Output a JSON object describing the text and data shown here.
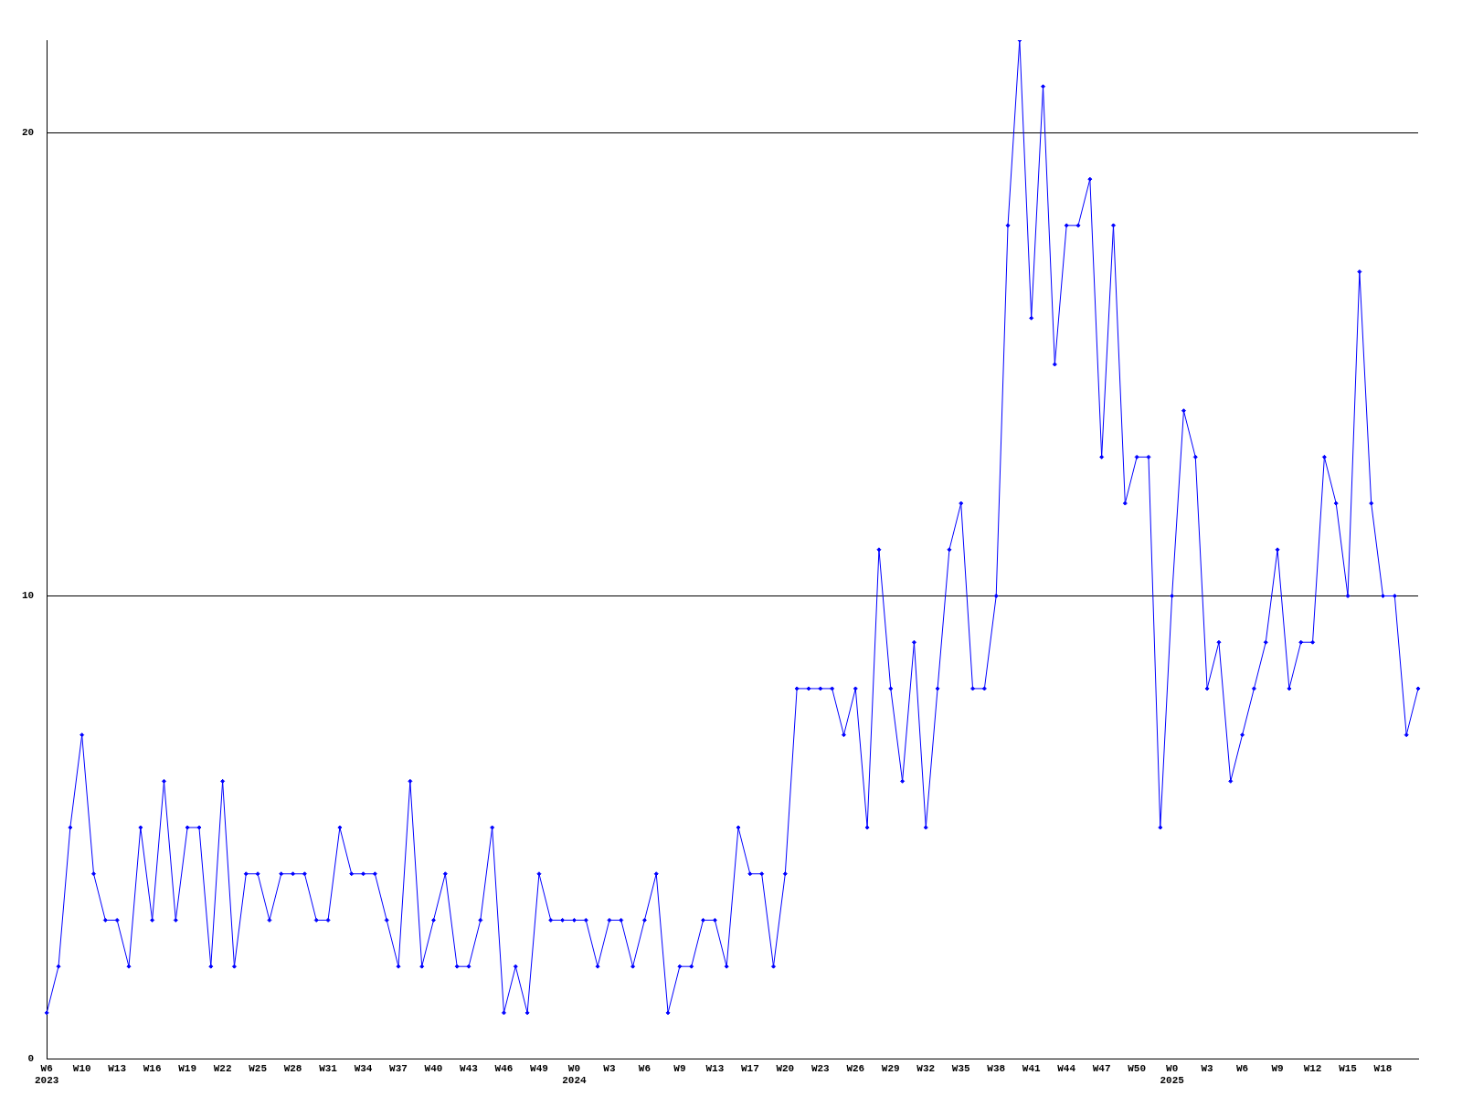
{
  "chart_data": {
    "type": "line",
    "categories": [
      "W6\n2023",
      null,
      null,
      "W10",
      null,
      null,
      "W13",
      null,
      null,
      "W16",
      null,
      null,
      "W19",
      null,
      null,
      "W22",
      null,
      null,
      "W25",
      null,
      null,
      "W28",
      null,
      null,
      "W31",
      null,
      null,
      "W34",
      null,
      null,
      "W37",
      null,
      null,
      "W40",
      null,
      null,
      "W43",
      null,
      null,
      "W46",
      null,
      null,
      "W49",
      null,
      null,
      "W0\n2024",
      null,
      null,
      "W3",
      null,
      null,
      "W6",
      null,
      null,
      "W9",
      null,
      null,
      "W13",
      null,
      null,
      "W17",
      null,
      null,
      "W20",
      null,
      null,
      "W23",
      null,
      null,
      "W26",
      null,
      null,
      "W29",
      null,
      null,
      "W32",
      null,
      null,
      "W35",
      null,
      null,
      "W38",
      null,
      null,
      "W41",
      null,
      null,
      "W44",
      null,
      null,
      "W47",
      null,
      null,
      "W50",
      null,
      null,
      "W0\n2025",
      null,
      null,
      "W3",
      null,
      null,
      "W6",
      null,
      null,
      "W9",
      null,
      null,
      "W12",
      null,
      null,
      "W15",
      null,
      null,
      "W18",
      null,
      null,
      null
    ],
    "series": [
      {
        "color": "#0000ff",
        "values": [
          1,
          2,
          5,
          7,
          4,
          3,
          3,
          2,
          5,
          3,
          6,
          3,
          5,
          5,
          2,
          6,
          2,
          4,
          4,
          3,
          4,
          4,
          4,
          3,
          3,
          5,
          4,
          4,
          4,
          3,
          2,
          6,
          2,
          3,
          4,
          2,
          2,
          3,
          5,
          1,
          2,
          1,
          4,
          3,
          3,
          3,
          3,
          2,
          3,
          3,
          2,
          3,
          4,
          1,
          2,
          2,
          3,
          3,
          2,
          5,
          4,
          4,
          2,
          4,
          8,
          8,
          8,
          8,
          7,
          8,
          5,
          11,
          8,
          6,
          9,
          5,
          8,
          11,
          12,
          8,
          8,
          10,
          18,
          22,
          16,
          21,
          15,
          18,
          18,
          19,
          13,
          18,
          12,
          13,
          13,
          5,
          10,
          14,
          13,
          8,
          9,
          6,
          7,
          8,
          9,
          11,
          8,
          9,
          9,
          13,
          12,
          10,
          17,
          12,
          10,
          10,
          7,
          8
        ]
      }
    ],
    "ylim": [
      0,
      22
    ],
    "yticks": [
      0,
      10,
      20
    ],
    "grid": "y",
    "marker": "diamond",
    "line_style": "solid",
    "legend": false
  }
}
